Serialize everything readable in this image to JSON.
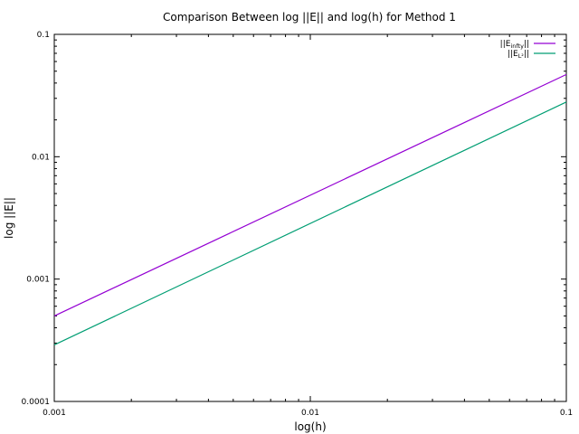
{
  "chart_data": {
    "type": "line",
    "title": "Comparison Between log ||E|| and log(h) for Method 1",
    "xlabel": "log(h)",
    "ylabel": "log ||E||",
    "xscale": "log",
    "yscale": "log",
    "xlim": [
      0.001,
      0.1
    ],
    "ylim": [
      0.0001,
      0.1
    ],
    "xticks": [
      "0.001",
      "0.01",
      "0.1"
    ],
    "yticks": [
      "0.0001",
      "0.001",
      "0.01",
      "0.1"
    ],
    "grid": false,
    "legend_position": "top-right",
    "series": [
      {
        "legend_prefix": "||E",
        "legend_sub": "infty",
        "legend_suffix": "||",
        "color": "#9400d3",
        "x": [
          0.001,
          0.1
        ],
        "y": [
          0.0005,
          0.047
        ]
      },
      {
        "legend_prefix": "||E",
        "legend_sub": "L²",
        "legend_suffix": "||",
        "color": "#009e73",
        "x": [
          0.001,
          0.1
        ],
        "y": [
          0.00029,
          0.028
        ]
      }
    ]
  }
}
